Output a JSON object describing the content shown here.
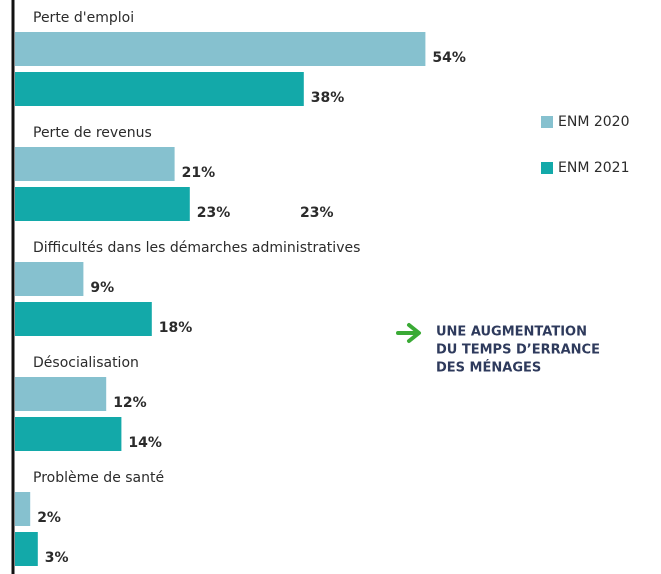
{
  "chart_data": {
    "type": "bar",
    "orientation": "horizontal",
    "categories": [
      "Perte d'emploi",
      "Perte de revenus",
      "Difficultés dans les démarches administratives",
      "Désocialisation",
      "Problème de santé"
    ],
    "series": [
      {
        "name": "ENM 2020",
        "color": "#86c1cf",
        "values": [
          54,
          21,
          9,
          12,
          2
        ],
        "value_labels": [
          "54%",
          "21%",
          "9%",
          "12%",
          "2%"
        ]
      },
      {
        "name": "ENM 2021",
        "color": "#13a9a9",
        "values": [
          38,
          23,
          18,
          14,
          3
        ],
        "value_labels": [
          "38%",
          "23%",
          "18%",
          "14%",
          "3%"
        ]
      }
    ],
    "extra_label": "23%",
    "annotation": [
      "UNE AUGMENTATION",
      "DU TEMPS D’ERRANCE",
      "DES MÉNAGES"
    ],
    "annotation_color": "#3aaa35"
  }
}
